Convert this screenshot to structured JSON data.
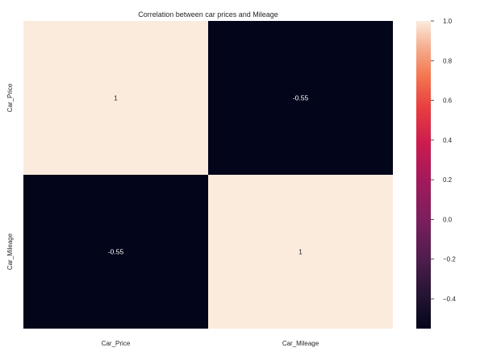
{
  "chart_data": {
    "type": "heatmap",
    "title": "Correlation between car prices and Mileage",
    "x_labels": [
      "Car_Price",
      "Car_Mileage"
    ],
    "y_labels": [
      "Car_Price",
      "Car_Mileage"
    ],
    "values": [
      [
        1,
        -0.55
      ],
      [
        -0.55,
        1
      ]
    ],
    "cell_annotations": [
      [
        "1",
        "-0.55"
      ],
      [
        "-0.55",
        "1"
      ]
    ],
    "colormap": "rocket",
    "colorbar": {
      "vmin": -0.55,
      "vmax": 1.0,
      "ticks": [
        1.0,
        0.8,
        0.6,
        0.4,
        0.2,
        0.0,
        -0.2,
        -0.4
      ],
      "tick_labels": [
        "1.0",
        "0.8",
        "0.6",
        "0.4",
        "0.2",
        "0.0",
        "−0.2",
        "−0.4"
      ]
    },
    "colors": {
      "low": "#03051a",
      "high": "#faebdd",
      "text_on_dark": "#ffffff",
      "text_on_light": "#262626"
    }
  }
}
